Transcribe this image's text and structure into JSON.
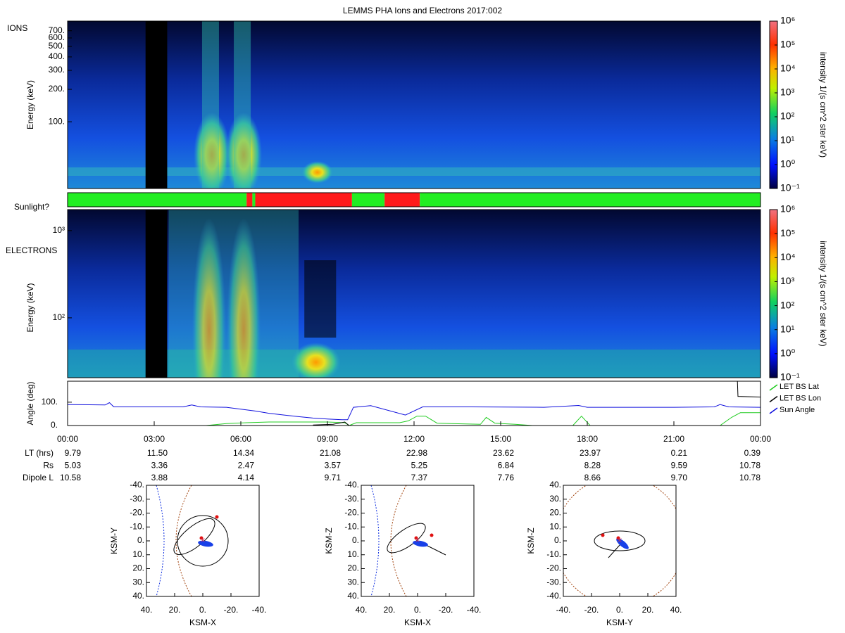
{
  "chart_data": [
    {
      "type": "spectrogram",
      "title": "LEMMS PHA Ions and Electrons  2017:002",
      "label": "IONS",
      "y_label": "Energy (keV)",
      "log_y": true,
      "ylim": [
        24,
        860
      ],
      "yticks": [
        {
          "value": 100,
          "label": "100."
        },
        {
          "value": 200,
          "label": "200."
        },
        {
          "value": 300,
          "label": "300."
        },
        {
          "value": 400,
          "label": "400."
        },
        {
          "value": 500,
          "label": "500."
        },
        {
          "value": 600,
          "label": "600."
        },
        {
          "value": 700,
          "label": "700."
        }
      ],
      "colorbar": {
        "label": "intensity 1/(s cm^2 ster keV)",
        "log": true,
        "lim": [
          0.1,
          1000000
        ],
        "ticks": [
          {
            "value": 0.1,
            "label": "10⁻¹"
          },
          {
            "value": 1,
            "label": "10⁰"
          },
          {
            "value": 10,
            "label": "10¹"
          },
          {
            "value": 100,
            "label": "10²"
          },
          {
            "value": 1000,
            "label": "10³"
          },
          {
            "value": 10000,
            "label": "10⁴"
          },
          {
            "value": 100000,
            "label": "10⁵"
          },
          {
            "value": 1000000,
            "label": "10⁶"
          }
        ]
      }
    },
    {
      "type": "timeline",
      "label": "Sunlight?",
      "xlim": [
        0,
        24
      ],
      "starts": [
        0,
        6.2,
        6.4,
        6.5,
        9.85,
        10.98,
        12.2
      ],
      "ends": [
        6.2,
        6.4,
        6.5,
        9.85,
        10.98,
        12.2,
        24
      ],
      "colors": [
        "#22ee22",
        "#ff1a1a",
        "#22ee22",
        "#ff1a1a",
        "#22ee22",
        "#ff1a1a",
        "#22ee22"
      ]
    },
    {
      "type": "spectrogram",
      "label": "ELECTRONS",
      "y_label": "Energy (keV)",
      "log_y": true,
      "ylim": [
        20.6,
        1740
      ],
      "yticks": [
        {
          "value": 100,
          "label": "10²"
        },
        {
          "value": 1000,
          "label": "10³"
        }
      ],
      "colorbar": {
        "label": "intensity 1/(s cm^2 ster keV)",
        "log": true,
        "lim": [
          0.1,
          1000000
        ],
        "ticks": [
          {
            "value": 0.1,
            "label": "10⁻¹"
          },
          {
            "value": 1,
            "label": "10⁰"
          },
          {
            "value": 10,
            "label": "10¹"
          },
          {
            "value": 100,
            "label": "10²"
          },
          {
            "value": 1000,
            "label": "10³"
          },
          {
            "value": 10000,
            "label": "10⁴"
          },
          {
            "value": 100000,
            "label": "10⁵"
          },
          {
            "value": 1000000,
            "label": "10⁶"
          }
        ]
      }
    },
    {
      "type": "line",
      "y_label": "Angle (deg)",
      "xlim": [
        0,
        24
      ],
      "ylim": [
        0,
        190
      ],
      "yticks": [
        {
          "value": 0,
          "label": "0."
        },
        {
          "value": 100,
          "label": "100."
        }
      ],
      "xticks": [
        {
          "value": 0,
          "label": "00:00"
        },
        {
          "value": 3,
          "label": "03:00"
        },
        {
          "value": 6,
          "label": "06:00"
        },
        {
          "value": 9,
          "label": "09:00"
        },
        {
          "value": 12,
          "label": "12:00"
        },
        {
          "value": 15,
          "label": "15:00"
        },
        {
          "value": 18,
          "label": "18:00"
        },
        {
          "value": 21,
          "label": "21:00"
        },
        {
          "value": 24,
          "label": "00:00"
        }
      ],
      "series": [
        {
          "name": "LET BS Lat",
          "color": "#22cc22",
          "x": [
            4.8,
            5.5,
            6.2,
            7,
            8,
            9,
            9.6,
            9.75,
            10,
            11.5,
            11.8,
            12.1,
            12.4,
            12.8,
            14.3,
            14.5,
            14.8,
            15.5,
            16.1,
            17.5,
            17.8,
            18.1,
            22.6,
            23,
            23.3,
            24
          ],
          "values": [
            0,
            8,
            12,
            15,
            15,
            15,
            12,
            0,
            12,
            12,
            20,
            40,
            40,
            10,
            5,
            35,
            10,
            5,
            0,
            0,
            40,
            0,
            0,
            35,
            55,
            55
          ]
        },
        {
          "name": "LET BS Lon",
          "color": "#000000",
          "x": [
            8.5,
            9.2,
            9.6,
            9.75,
            23.1,
            23.2,
            23.22,
            24
          ],
          "values": [
            2,
            5,
            15,
            0,
            null,
            190,
            125,
            122
          ]
        },
        {
          "name": "Sun Angle",
          "color": "#1010dd",
          "x": [
            0,
            1.3,
            1.45,
            1.6,
            4,
            4.3,
            4.6,
            5.5,
            6,
            6.5,
            7,
            7.5,
            8,
            8.5,
            9,
            9.5,
            9.7,
            9.9,
            10.5,
            11.7,
            12.3,
            14,
            16.5,
            17.7,
            18,
            21,
            22.4,
            22.6,
            22.9,
            24
          ],
          "values": [
            90,
            88,
            98,
            80,
            80,
            88,
            80,
            78,
            70,
            62,
            52,
            45,
            38,
            32,
            28,
            25,
            25,
            78,
            85,
            45,
            80,
            80,
            78,
            86,
            78,
            78,
            80,
            90,
            80,
            78
          ]
        }
      ]
    },
    {
      "type": "table",
      "rows": [
        {
          "label": "LT (hrs)",
          "values": [
            "9.79",
            "11.50",
            "14.34",
            "21.08",
            "22.98",
            "23.62",
            "23.97",
            "0.21",
            "0.39"
          ]
        },
        {
          "label": "Rs",
          "values": [
            "5.03",
            "3.36",
            "2.47",
            "3.57",
            "5.25",
            "6.84",
            "8.28",
            "9.59",
            "10.78"
          ]
        },
        {
          "label": "Dipole L",
          "values": [
            "10.58",
            "3.88",
            "4.14",
            "9.71",
            "7.37",
            "7.76",
            "8.66",
            "9.70",
            "10.78"
          ]
        }
      ]
    },
    {
      "type": "orbit",
      "x_label": "KSM-X",
      "y_label": "KSM-Y",
      "xlim": [
        40,
        -40
      ],
      "ylim": [
        40,
        -40
      ],
      "xticks": [
        {
          "value": 40,
          "label": "40."
        },
        {
          "value": 20,
          "label": "20."
        },
        {
          "value": 0,
          "label": "0."
        },
        {
          "value": -20,
          "label": "-20."
        },
        {
          "value": -40,
          "label": "-40."
        }
      ],
      "yticks": [
        {
          "value": -40,
          "label": "-40."
        },
        {
          "value": -30,
          "label": "-30."
        },
        {
          "value": -20,
          "label": "-20."
        },
        {
          "value": -10,
          "label": "-10."
        },
        {
          "value": 0,
          "label": "0."
        },
        {
          "value": 10,
          "label": "10."
        },
        {
          "value": 20,
          "label": "20."
        },
        {
          "value": 30,
          "label": "30."
        },
        {
          "value": 40,
          "label": "40."
        }
      ]
    },
    {
      "type": "orbit",
      "x_label": "KSM-X",
      "y_label": "KSM-Z",
      "xlim": [
        40,
        -40
      ],
      "ylim": [
        40,
        -40
      ],
      "xticks": [
        {
          "value": 40,
          "label": "40."
        },
        {
          "value": 20,
          "label": "20."
        },
        {
          "value": 0,
          "label": "0."
        },
        {
          "value": -20,
          "label": "-20."
        },
        {
          "value": -40,
          "label": "-40."
        }
      ],
      "yticks": [
        {
          "value": -40,
          "label": "-40."
        },
        {
          "value": -30,
          "label": "-30."
        },
        {
          "value": -20,
          "label": "-20."
        },
        {
          "value": -10,
          "label": "-10."
        },
        {
          "value": 0,
          "label": "0."
        },
        {
          "value": 10,
          "label": "10."
        },
        {
          "value": 20,
          "label": "20."
        },
        {
          "value": 30,
          "label": "30."
        },
        {
          "value": 40,
          "label": "40."
        }
      ]
    },
    {
      "type": "orbit",
      "x_label": "KSM-Y",
      "y_label": "KSM-Z",
      "xlim": [
        -40,
        40
      ],
      "ylim": [
        -40,
        40
      ],
      "xticks": [
        {
          "value": -40,
          "label": "-40."
        },
        {
          "value": -20,
          "label": "-20."
        },
        {
          "value": 0,
          "label": "0."
        },
        {
          "value": 20,
          "label": "20."
        },
        {
          "value": 40,
          "label": "40."
        }
      ],
      "yticks": [
        {
          "value": 40,
          "label": "40."
        },
        {
          "value": 30,
          "label": "30."
        },
        {
          "value": 20,
          "label": "20."
        },
        {
          "value": 10,
          "label": "10."
        },
        {
          "value": 0,
          "label": "0."
        },
        {
          "value": -10,
          "label": "-10."
        },
        {
          "value": -20,
          "label": "-20."
        },
        {
          "value": -30,
          "label": "-30."
        },
        {
          "value": -40,
          "label": "-40."
        }
      ]
    }
  ]
}
